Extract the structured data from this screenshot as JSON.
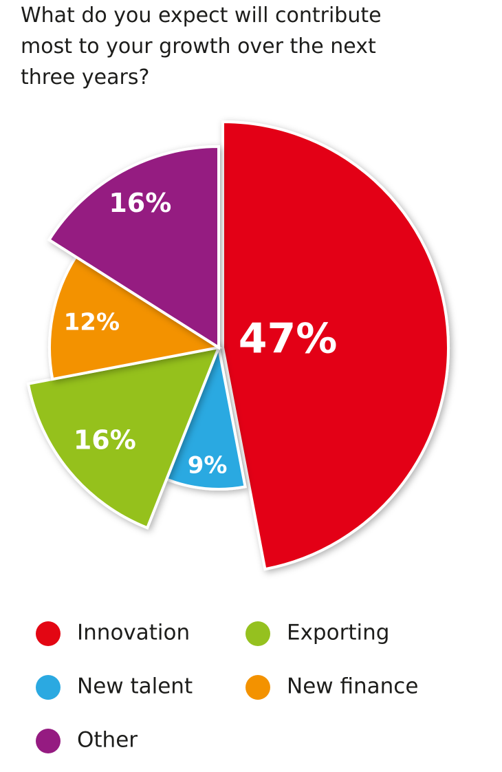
{
  "chart_data": {
    "type": "pie",
    "title": "What do you expect will contribute most to your growth over the next three years?",
    "categories": [
      "Innovation",
      "New talent",
      "Exporting",
      "New finance",
      "Other"
    ],
    "values": [
      47,
      9,
      16,
      12,
      16
    ],
    "value_labels": [
      "47%",
      "9%",
      "16%",
      "12%",
      "16%"
    ],
    "colors": [
      "#e30613",
      "#2ba9e1",
      "#95c11f",
      "#f39200",
      "#951b81"
    ]
  }
}
